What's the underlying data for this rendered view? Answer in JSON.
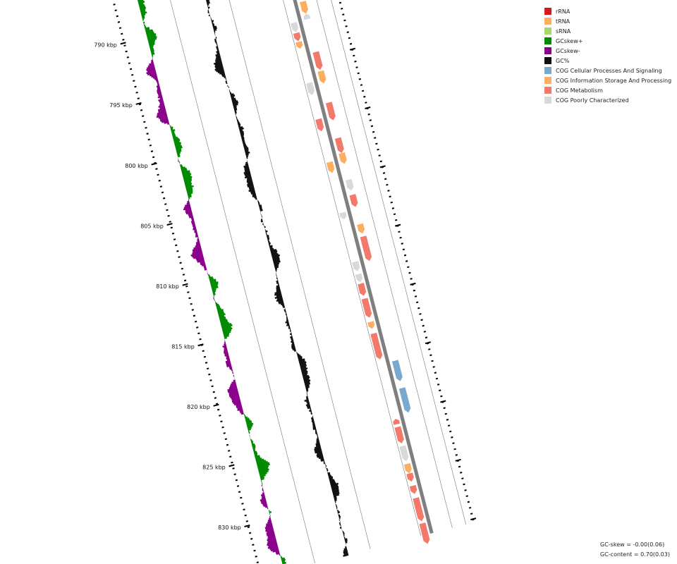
{
  "map": {
    "ticks": [
      {
        "label": "790 kbp",
        "kbp": 790
      },
      {
        "label": "795 kbp",
        "kbp": 795
      },
      {
        "label": "800 kbp",
        "kbp": 800
      },
      {
        "label": "805 kbp",
        "kbp": 805
      },
      {
        "label": "810 kbp",
        "kbp": 810
      },
      {
        "label": "815 kbp",
        "kbp": 815
      },
      {
        "label": "820 kbp",
        "kbp": 820
      },
      {
        "label": "825 kbp",
        "kbp": 825
      },
      {
        "label": "830 kbp",
        "kbp": 830
      }
    ],
    "colors": {
      "rRNA": "#d7191c",
      "tRNA": "#fdae61",
      "sRNA": "#a6d96a",
      "gcskew_plus": "#008a00",
      "gcskew_minus": "#8b008b",
      "gc": "#111111",
      "cog_cellular": "#7aa9cf",
      "cog_info": "#fdae61",
      "cog_metabolism": "#f3796b",
      "cog_poorly": "#d9d9d9",
      "backbone": "#7f7f7f"
    }
  },
  "legend": [
    {
      "label": "rRNA",
      "color": "#d7191c"
    },
    {
      "label": "tRNA",
      "color": "#fdae61"
    },
    {
      "label": "sRNA",
      "color": "#a6d96a"
    },
    {
      "label": "GCskew+",
      "color": "#008a00"
    },
    {
      "label": "GCskew-",
      "color": "#8b008b"
    },
    {
      "label": "GC%",
      "color": "#111111"
    },
    {
      "label": "COG Cellular Processes And Signaling",
      "color": "#7aa9cf"
    },
    {
      "label": "COG Information Storage And Processing",
      "color": "#fdae61"
    },
    {
      "label": "COG Metabolism",
      "color": "#f3796b"
    },
    {
      "label": "COG Poorly Characterized",
      "color": "#d9d9d9"
    }
  ],
  "stats": {
    "gc_skew": "GC-skew = -0.00(0.06)",
    "gc_content": "GC-content = 0.70(0.03)"
  }
}
